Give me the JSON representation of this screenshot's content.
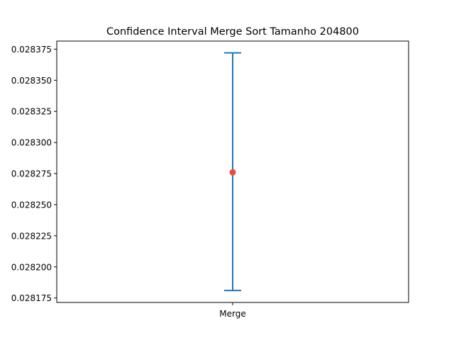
{
  "chart_data": {
    "type": "errorbar",
    "title": "Confidence Interval Merge Sort Tamanho 204800",
    "xlabel": "",
    "ylabel": "",
    "categories": [
      "Merge"
    ],
    "points": [
      {
        "category": "Merge",
        "mean": 0.028276,
        "lower": 0.028181,
        "upper": 0.028372
      }
    ],
    "yticks": [
      0.028175,
      0.0282,
      0.028225,
      0.02825,
      0.028275,
      0.0283,
      0.028325,
      0.02835,
      0.028375
    ],
    "ytick_labels": [
      "0.028175",
      "0.028200",
      "0.028225",
      "0.028250",
      "0.028275",
      "0.028300",
      "0.028325",
      "0.028350",
      "0.028375"
    ],
    "ylim": [
      0.0281714,
      0.0283815
    ],
    "grid": false,
    "colors": {
      "errorbar": "#1f77b4",
      "mean_point": "#f04a3a",
      "axes": "#000000"
    }
  }
}
